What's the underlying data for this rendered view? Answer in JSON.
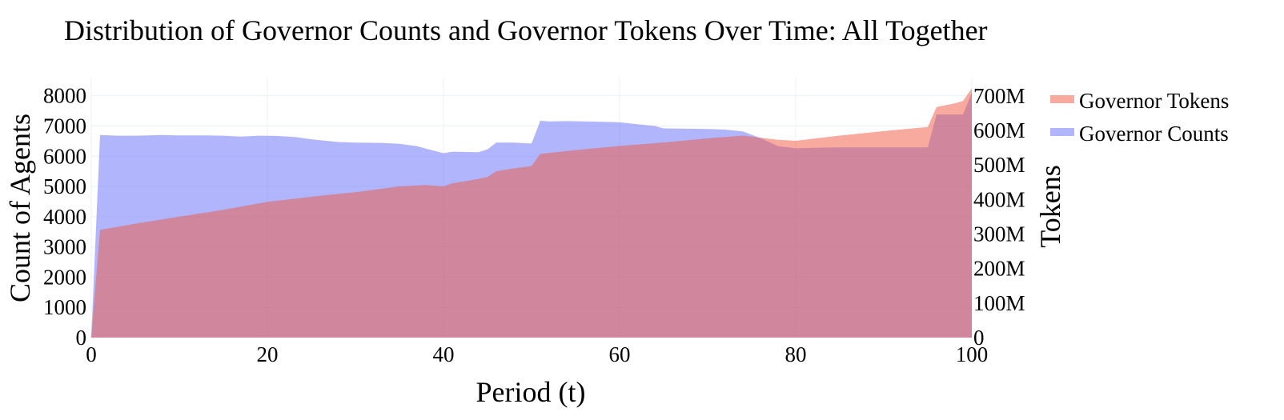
{
  "chart_data": {
    "type": "area",
    "title": "Distribution of Governor Counts and Governor Tokens Over Time: All Together",
    "xlabel": "Period (t)",
    "ylabel": "Count of Agents",
    "y2label": "Tokens",
    "xlim": [
      0,
      100
    ],
    "ylim": [
      0,
      8600
    ],
    "y2lim": [
      0,
      753000000
    ],
    "grid": true,
    "legend_position": "top-right",
    "x_ticks": [
      {
        "value": 0,
        "label": "0"
      },
      {
        "value": 20,
        "label": "20"
      },
      {
        "value": 40,
        "label": "40"
      },
      {
        "value": 60,
        "label": "60"
      },
      {
        "value": 80,
        "label": "80"
      },
      {
        "value": 100,
        "label": "100"
      }
    ],
    "y_ticks": [
      {
        "value": 0,
        "label": "0"
      },
      {
        "value": 1000,
        "label": "1000"
      },
      {
        "value": 2000,
        "label": "2000"
      },
      {
        "value": 3000,
        "label": "3000"
      },
      {
        "value": 4000,
        "label": "4000"
      },
      {
        "value": 5000,
        "label": "5000"
      },
      {
        "value": 6000,
        "label": "6000"
      },
      {
        "value": 7000,
        "label": "7000"
      },
      {
        "value": 8000,
        "label": "8000"
      }
    ],
    "y2_ticks": [
      {
        "value": 0,
        "label": "0"
      },
      {
        "value": 100000000,
        "label": "100M"
      },
      {
        "value": 200000000,
        "label": "200M"
      },
      {
        "value": 300000000,
        "label": "300M"
      },
      {
        "value": 400000000,
        "label": "400M"
      },
      {
        "value": 500000000,
        "label": "500M"
      },
      {
        "value": 600000000,
        "label": "600M"
      },
      {
        "value": 700000000,
        "label": "700M"
      }
    ],
    "series": [
      {
        "name": "Governor Counts",
        "axis": "y",
        "color": "#636efa",
        "x": [
          0,
          1,
          3,
          5,
          8,
          10,
          13,
          15,
          17,
          19,
          21,
          23,
          25,
          28,
          30,
          33,
          35,
          37,
          38,
          40,
          41,
          43,
          44,
          45,
          46,
          48,
          50,
          51,
          52,
          54,
          56,
          58,
          60,
          62,
          64,
          65,
          68,
          70,
          72,
          74,
          76,
          78,
          80,
          82,
          85,
          88,
          90,
          93,
          95,
          96,
          98,
          99,
          100
        ],
        "values": [
          0,
          6700,
          6680,
          6680,
          6700,
          6690,
          6690,
          6680,
          6650,
          6680,
          6670,
          6640,
          6560,
          6470,
          6450,
          6440,
          6410,
          6330,
          6250,
          6100,
          6150,
          6140,
          6130,
          6230,
          6450,
          6450,
          6420,
          7170,
          7150,
          7160,
          7150,
          7140,
          7120,
          7060,
          7000,
          6920,
          6910,
          6900,
          6880,
          6820,
          6600,
          6330,
          6260,
          6280,
          6290,
          6290,
          6290,
          6290,
          6290,
          7380,
          7380,
          7380,
          8100
        ]
      },
      {
        "name": "Governor Tokens",
        "axis": "y2",
        "color": "#ef553b",
        "x": [
          0,
          1,
          5,
          10,
          15,
          20,
          25,
          30,
          35,
          38,
          40,
          41,
          43,
          45,
          46,
          48,
          50,
          51,
          55,
          60,
          65,
          70,
          74,
          78,
          80,
          85,
          90,
          95,
          96,
          98,
          99,
          100
        ],
        "values": [
          0,
          312000000,
          330000000,
          350000000,
          370000000,
          393000000,
          408000000,
          421000000,
          438000000,
          442000000,
          438000000,
          447000000,
          455000000,
          465000000,
          482000000,
          490000000,
          497000000,
          532000000,
          543000000,
          555000000,
          565000000,
          577000000,
          585000000,
          573000000,
          570000000,
          585000000,
          598000000,
          610000000,
          668000000,
          678000000,
          685000000,
          722000000
        ]
      }
    ]
  }
}
